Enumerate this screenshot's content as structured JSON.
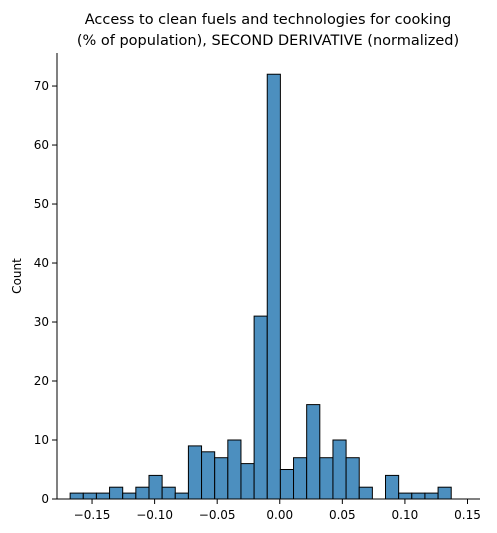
{
  "chart_data": {
    "type": "bar",
    "title_lines": [
      "Access to clean fuels and technologies for cooking",
      "(% of population), SECOND DERIVATIVE (normalized)"
    ],
    "xlabel": "",
    "ylabel": "Count",
    "bar_color": "#4c8fbf",
    "edge_color": "#000000",
    "xlim": [
      -0.178,
      0.16
    ],
    "ylim": [
      0,
      75.6
    ],
    "bin_width": 0.0105,
    "bins": [
      {
        "left": -0.1675,
        "count": 1
      },
      {
        "left": -0.157,
        "count": 1
      },
      {
        "left": -0.1465,
        "count": 1
      },
      {
        "left": -0.136,
        "count": 2
      },
      {
        "left": -0.1255,
        "count": 1
      },
      {
        "left": -0.115,
        "count": 2
      },
      {
        "left": -0.1045,
        "count": 4
      },
      {
        "left": -0.094,
        "count": 2
      },
      {
        "left": -0.0835,
        "count": 1
      },
      {
        "left": -0.073,
        "count": 9
      },
      {
        "left": -0.0625,
        "count": 8
      },
      {
        "left": -0.052,
        "count": 7
      },
      {
        "left": -0.0415,
        "count": 10
      },
      {
        "left": -0.031,
        "count": 6
      },
      {
        "left": -0.0205,
        "count": 31
      },
      {
        "left": -0.01,
        "count": 72
      },
      {
        "left": 0.0005,
        "count": 5
      },
      {
        "left": 0.011,
        "count": 7
      },
      {
        "left": 0.0215,
        "count": 16
      },
      {
        "left": 0.032,
        "count": 7
      },
      {
        "left": 0.0425,
        "count": 10
      },
      {
        "left": 0.053,
        "count": 7
      },
      {
        "left": 0.0635,
        "count": 2
      },
      {
        "left": 0.074,
        "count": 0
      },
      {
        "left": 0.0845,
        "count": 4
      },
      {
        "left": 0.095,
        "count": 1
      },
      {
        "left": 0.1055,
        "count": 1
      },
      {
        "left": 0.116,
        "count": 1
      },
      {
        "left": 0.1265,
        "count": 2
      }
    ],
    "x_ticks": [
      {
        "value": -0.15,
        "label": "−0.15"
      },
      {
        "value": -0.1,
        "label": "−0.10"
      },
      {
        "value": -0.05,
        "label": "−0.05"
      },
      {
        "value": 0.0,
        "label": "0.00"
      },
      {
        "value": 0.05,
        "label": "0.05"
      },
      {
        "value": 0.1,
        "label": "0.10"
      },
      {
        "value": 0.15,
        "label": "0.15"
      }
    ],
    "y_ticks": [
      {
        "value": 0,
        "label": "0"
      },
      {
        "value": 10,
        "label": "10"
      },
      {
        "value": 20,
        "label": "20"
      },
      {
        "value": 30,
        "label": "30"
      },
      {
        "value": 40,
        "label": "40"
      },
      {
        "value": 50,
        "label": "50"
      },
      {
        "value": 60,
        "label": "60"
      },
      {
        "value": 70,
        "label": "70"
      }
    ],
    "grid": false
  }
}
